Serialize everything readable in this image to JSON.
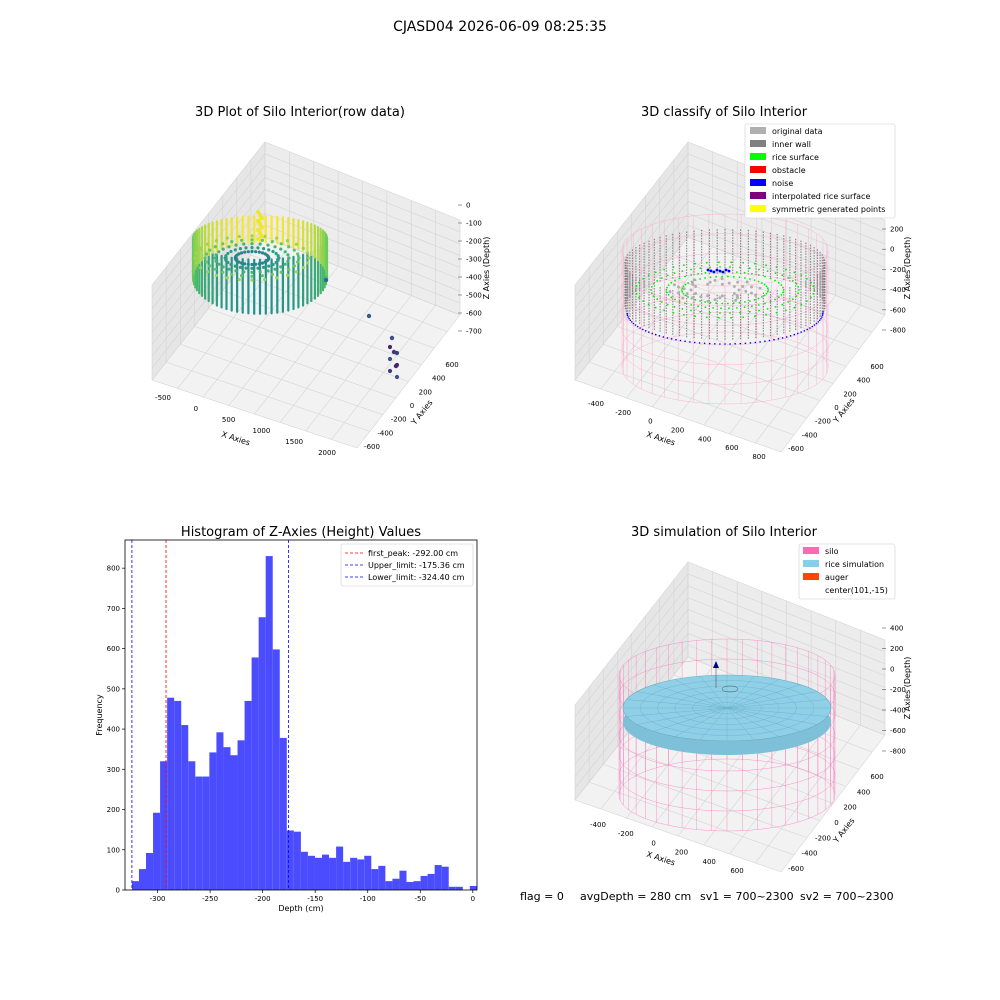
{
  "figure": {
    "suptitle": "CJASD04 2026-06-09 08:25:35",
    "footer": [
      "flag = 0",
      "avgDepth = 280 cm",
      "sv1 = 700~2300",
      "sv2 = 700~2300"
    ]
  },
  "chart_data": [
    {
      "type": "scatter",
      "projection": "3d",
      "title": "3D Plot of Silo Interior(row data)",
      "xlabel": "X Axies",
      "ylabel": "Y Axies",
      "zlabel": "Z Axies (Depth)",
      "xticks": [
        -500,
        0,
        500,
        1000,
        1500,
        2000
      ],
      "yticks": [
        -600,
        -400,
        -200,
        0,
        200,
        400,
        600
      ],
      "zticks": [
        0,
        -100,
        -200,
        -300,
        -400,
        -500,
        -600,
        -700
      ],
      "colormap": "viridis",
      "outliers": [
        {
          "x": 1100,
          "y": 150,
          "z": -450
        },
        {
          "x": 1500,
          "y": 0,
          "z": -520
        },
        {
          "x": 2000,
          "y": -100,
          "z": -630
        },
        {
          "x": 2020,
          "y": -150,
          "z": -660
        },
        {
          "x": 2050,
          "y": -200,
          "z": -690
        }
      ]
    },
    {
      "type": "scatter",
      "projection": "3d",
      "title": "3D classify of Silo Interior",
      "xlabel": "X Axies",
      "ylabel": "Y Axies",
      "zlabel": "Z Axies (Depth)",
      "xticks": [
        -400,
        -200,
        0,
        200,
        400,
        600,
        800
      ],
      "yticks": [
        -600,
        -400,
        -200,
        0,
        200,
        400,
        600
      ],
      "zticks": [
        200,
        0,
        -200,
        -400,
        -600,
        -800
      ],
      "legend_position": "top-right",
      "legend": [
        {
          "label": "original data",
          "color": "#b0b0b0"
        },
        {
          "label": "inner wall",
          "color": "#808080"
        },
        {
          "label": "rice surface",
          "color": "#00ff00"
        },
        {
          "label": "obstacle",
          "color": "#ff0000"
        },
        {
          "label": "noise",
          "color": "#0000ff"
        },
        {
          "label": "interpolated rice surface",
          "color": "#800080"
        },
        {
          "label": "symmetric generated points",
          "color": "#ffff00"
        }
      ]
    },
    {
      "type": "bar",
      "title": "Histogram of Z-Axies (Height) Values",
      "xlabel": "Depth (cm)",
      "ylabel": "Frequency",
      "xlim": [
        -331,
        4
      ],
      "ylim": [
        0,
        870
      ],
      "xticks": [
        -300,
        -250,
        -200,
        -150,
        -100,
        -50,
        0
      ],
      "yticks": [
        0,
        100,
        200,
        300,
        400,
        500,
        600,
        700,
        800
      ],
      "bin_width": 6.7,
      "bar_color": "#4c4cff",
      "bin_starts": [
        -324.4,
        -317.7,
        -311.0,
        -304.3,
        -297.6,
        -290.9,
        -284.2,
        -277.5,
        -270.8,
        -264.1,
        -257.4,
        -250.7,
        -244.0,
        -237.3,
        -230.6,
        -223.9,
        -217.2,
        -210.5,
        -203.8,
        -197.1,
        -190.4,
        -183.7,
        -177.0,
        -170.3,
        -163.6,
        -156.9,
        -150.2,
        -143.5,
        -136.8,
        -130.1,
        -123.4,
        -116.7,
        -110.0,
        -103.3,
        -96.6,
        -89.9,
        -83.2,
        -76.5,
        -69.8,
        -63.1,
        -56.4,
        -49.7,
        -43.0,
        -36.3,
        -29.6,
        -22.9,
        -16.2,
        -9.5,
        -2.8
      ],
      "values": [
        22,
        52,
        92,
        192,
        320,
        478,
        470,
        410,
        320,
        282,
        282,
        342,
        392,
        355,
        335,
        372,
        470,
        578,
        678,
        830,
        598,
        378,
        148,
        145,
        95,
        85,
        80,
        88,
        80,
        108,
        70,
        80,
        76,
        85,
        52,
        60,
        22,
        28,
        48,
        20,
        22,
        35,
        40,
        62,
        58,
        8,
        8,
        0,
        10
      ],
      "vlines": [
        {
          "label": "first_peak: -292.00 cm",
          "x": -292.0,
          "color": "#ff0000"
        },
        {
          "label": "Upper_limit: -175.36 cm",
          "x": -175.36,
          "color": "#0000ff"
        },
        {
          "label": "Lower_limit: -324.40 cm",
          "x": -324.4,
          "color": "#0000ff"
        }
      ],
      "legend_position": "top-right"
    },
    {
      "type": "scatter",
      "projection": "3d",
      "title": "3D simulation of Silo Interior",
      "xlabel": "X Axies",
      "ylabel": "Y Axies",
      "zlabel": "Z Axies (Depth)",
      "xticks": [
        -400,
        -200,
        0,
        200,
        400,
        600
      ],
      "yticks": [
        -600,
        -400,
        -200,
        0,
        200,
        400,
        600
      ],
      "zticks": [
        400,
        200,
        0,
        -200,
        -400,
        -600,
        -800
      ],
      "legend_position": "top-right",
      "legend": [
        {
          "label": "silo",
          "color": "#ff69b4"
        },
        {
          "label": "rice simulation",
          "color": "#87ceeb"
        },
        {
          "label": "auger",
          "color": "#ff4500"
        },
        {
          "label": "center(101,-15)",
          "color": ""
        }
      ]
    }
  ]
}
